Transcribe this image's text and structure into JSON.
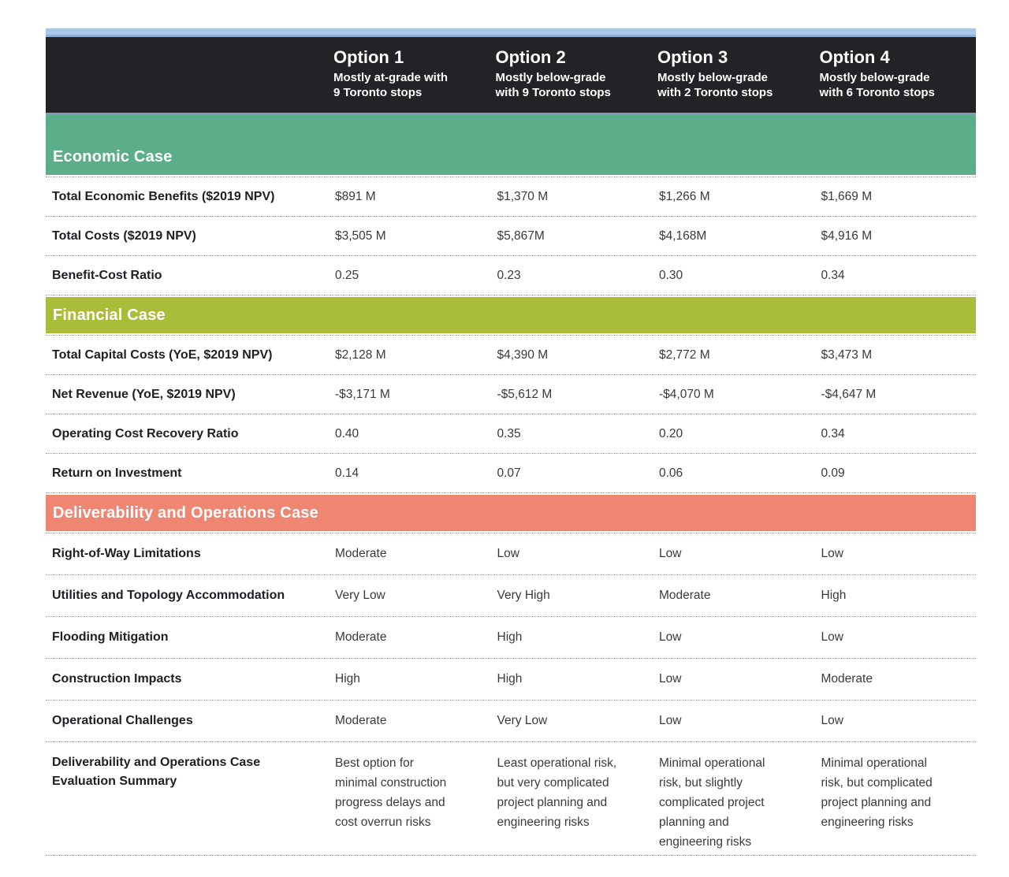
{
  "colors": {
    "top_bar": "#a9c7e6",
    "header_bg": "#232227",
    "header_underline": "#7d9cc0",
    "economic_band": "#5bae89",
    "financial_band": "#a9bd3b",
    "deliverability_band": "#ee8672",
    "row_divider": "#9a9a9a"
  },
  "header": {
    "options": [
      {
        "title": "Option 1",
        "subtitle": "Mostly at-grade with\n9 Toronto stops"
      },
      {
        "title": "Option 2",
        "subtitle": "Mostly below-grade\nwith 9 Toronto stops"
      },
      {
        "title": "Option 3",
        "subtitle": "Mostly below-grade\nwith 2 Toronto stops"
      },
      {
        "title": "Option 4",
        "subtitle": "Mostly below-grade\nwith 6 Toronto stops"
      }
    ]
  },
  "sections": [
    {
      "title": "Economic Case",
      "rows": [
        {
          "label": "Total Economic Benefits ($2019 NPV)",
          "values": [
            "$891 M",
            "$1,370 M",
            "$1,266 M",
            "$1,669 M"
          ]
        },
        {
          "label": "Total Costs ($2019 NPV)",
          "values": [
            "$3,505 M",
            "$5,867M",
            "$4,168M",
            "$4,916 M"
          ]
        },
        {
          "label": "Benefit-Cost Ratio",
          "values": [
            "0.25",
            "0.23",
            "0.30",
            "0.34"
          ]
        }
      ]
    },
    {
      "title": "Financial Case",
      "rows": [
        {
          "label": "Total Capital Costs (YoE, $2019 NPV)",
          "values": [
            "$2,128 M",
            "$4,390 M",
            "$2,772 M",
            "$3,473 M"
          ]
        },
        {
          "label": "Net Revenue (YoE, $2019 NPV)",
          "values": [
            "-$3,171 M",
            "-$5,612 M",
            "-$4,070 M",
            "-$4,647 M"
          ]
        },
        {
          "label": "Operating Cost Recovery Ratio",
          "values": [
            "0.40",
            "0.35",
            "0.20",
            "0.34"
          ]
        },
        {
          "label": "Return on Investment",
          "values": [
            "0.14",
            "0.07",
            "0.06",
            "0.09"
          ]
        }
      ]
    },
    {
      "title": "Deliverability and Operations Case",
      "rows": [
        {
          "label": "Right-of-Way Limitations",
          "values": [
            "Moderate",
            "Low",
            "Low",
            "Low"
          ]
        },
        {
          "label": "Utilities and Topology Accommodation",
          "values": [
            "Very Low",
            "Very High",
            "Moderate",
            "High"
          ]
        },
        {
          "label": "Flooding Mitigation",
          "values": [
            "Moderate",
            "High",
            "Low",
            "Low"
          ]
        },
        {
          "label": "Construction Impacts",
          "values": [
            "High",
            "High",
            "Low",
            "Moderate"
          ]
        },
        {
          "label": "Operational Challenges",
          "values": [
            "Moderate",
            "Very Low",
            "Low",
            "Low"
          ]
        },
        {
          "label": "Deliverability and Operations Case\nEvaluation Summary",
          "values": [
            "Best option for\nminimal construction\nprogress delays and\ncost overrun risks",
            "Least operational risk,\nbut very complicated\nproject planning and\nengineering risks",
            "Minimal operational\nrisk, but slightly\ncomplicated project\nplanning and\nengineering risks",
            "Minimal operational\nrisk, but complicated\nproject planning and\nengineering risks"
          ]
        }
      ]
    }
  ]
}
